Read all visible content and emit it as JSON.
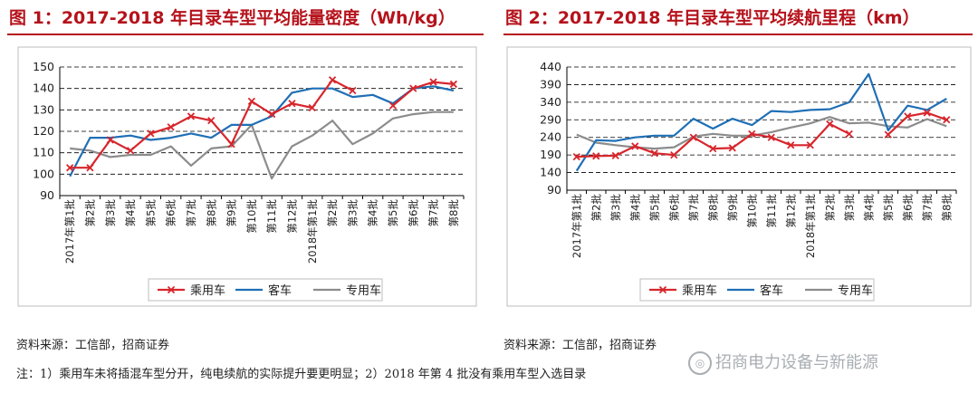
{
  "chart_data": [
    {
      "type": "line",
      "title": "图 1：2017-2018 年目录车型平均能量密度（Wh/kg）",
      "categories": [
        "2017年第1批",
        "第2批",
        "第3批",
        "第4批",
        "第5批",
        "第6批",
        "第7批",
        "第8批",
        "第9批",
        "第10批",
        "第11批",
        "第12批",
        "2018年第1批",
        "第2批",
        "第3批",
        "第4批",
        "第5批",
        "第6批",
        "第7批",
        "第8批"
      ],
      "ylim": [
        90,
        150
      ],
      "yticks": [
        90,
        100,
        110,
        120,
        130,
        140,
        150
      ],
      "grid": true,
      "legend_position": "bottom",
      "series": [
        {
          "name": "乘用车",
          "color": "#d7262c",
          "marker": "x",
          "values": [
            103,
            103,
            116,
            111,
            119,
            122,
            127,
            125,
            114,
            134,
            128,
            133,
            131,
            144,
            139,
            null,
            132,
            140,
            143,
            142
          ]
        },
        {
          "name": "客车",
          "color": "#1f6fb5",
          "marker": "none",
          "values": [
            99,
            117,
            117,
            118,
            116,
            117,
            119,
            117,
            123,
            123,
            127,
            138,
            140,
            140,
            136,
            137,
            133,
            140,
            141,
            139
          ]
        },
        {
          "name": "专用车",
          "color": "#8c8c8c",
          "marker": "none",
          "values": [
            112,
            111,
            108,
            109,
            109,
            113,
            104,
            112,
            113,
            123,
            98,
            113,
            118,
            125,
            114,
            119,
            126,
            128,
            129,
            129
          ]
        }
      ]
    },
    {
      "type": "line",
      "title": "图 2：2017-2018 年目录车型平均续航里程（km）",
      "categories": [
        "2017年第1批",
        "第2批",
        "第3批",
        "第4批",
        "第5批",
        "第6批",
        "第7批",
        "第8批",
        "第9批",
        "第10批",
        "第11批",
        "第12批",
        "2018年第1批",
        "第2批",
        "第3批",
        "第4批",
        "第5批",
        "第6批",
        "第7批",
        "第8批"
      ],
      "ylim": [
        90,
        440
      ],
      "yticks": [
        90,
        140,
        190,
        240,
        290,
        340,
        390,
        440
      ],
      "grid": true,
      "legend_position": "bottom",
      "series": [
        {
          "name": "乘用车",
          "color": "#d7262c",
          "marker": "x",
          "values": [
            185,
            187,
            188,
            215,
            195,
            190,
            240,
            208,
            210,
            250,
            240,
            218,
            218,
            278,
            250,
            null,
            248,
            300,
            310,
            290
          ]
        },
        {
          "name": "客车",
          "color": "#1f6fb5",
          "marker": "none",
          "values": [
            145,
            232,
            230,
            240,
            245,
            245,
            293,
            265,
            293,
            275,
            315,
            312,
            318,
            320,
            340,
            420,
            260,
            330,
            318,
            350
          ]
        },
        {
          "name": "专用车",
          "color": "#8c8c8c",
          "marker": "none",
          "values": [
            248,
            225,
            218,
            212,
            208,
            212,
            242,
            250,
            245,
            245,
            255,
            268,
            280,
            298,
            280,
            282,
            272,
            268,
            292,
            272
          ]
        }
      ]
    }
  ],
  "source": {
    "left": "资料来源：工信部，招商证券",
    "right": "资料来源：工信部，招商证券"
  },
  "note": "注：1）乘用车未将插混车型分开，纯电续航的实际提升要更明显；2）2018 年第 4 批没有乘用车型入选目录",
  "watermark": {
    "text": "招商电力设备与新能源",
    "icon": "wechat-icon"
  }
}
